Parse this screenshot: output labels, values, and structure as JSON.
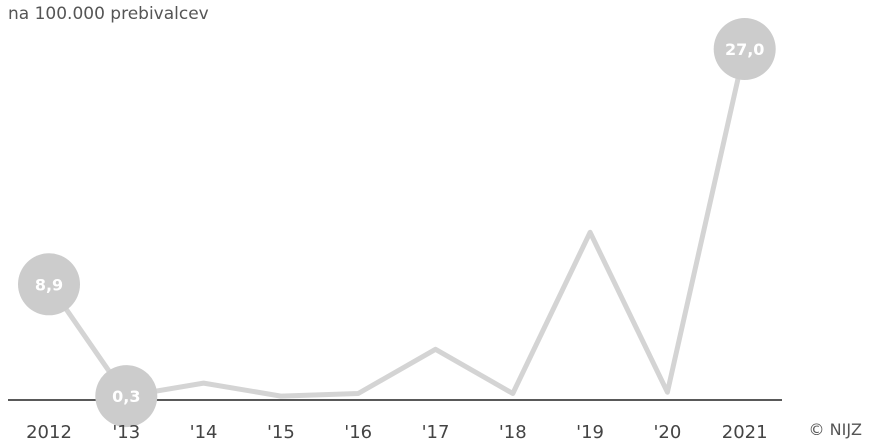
{
  "subtitle": "na 100.000 prebivalcev",
  "credit": "© NIJZ",
  "colors": {
    "line": "#d4d4d4",
    "bubble": "#cccccc",
    "axis": "#222222",
    "label": "#ffffff"
  },
  "chart_data": {
    "type": "line",
    "categories": [
      "2012",
      "'13",
      "'14",
      "'15",
      "'16",
      "'17",
      "'18",
      "'19",
      "'20",
      "2021"
    ],
    "series": [
      {
        "values": [
          8.9,
          0.3,
          1.3,
          0.3,
          0.5,
          3.9,
          0.5,
          12.9,
          0.6,
          27.0
        ]
      }
    ],
    "data_labels": [
      {
        "index": 0,
        "text": "8,9"
      },
      {
        "index": 1,
        "text": "0,3"
      },
      {
        "index": 9,
        "text": "27,0"
      }
    ],
    "ylim": [
      0,
      27.0
    ],
    "grid": false
  }
}
